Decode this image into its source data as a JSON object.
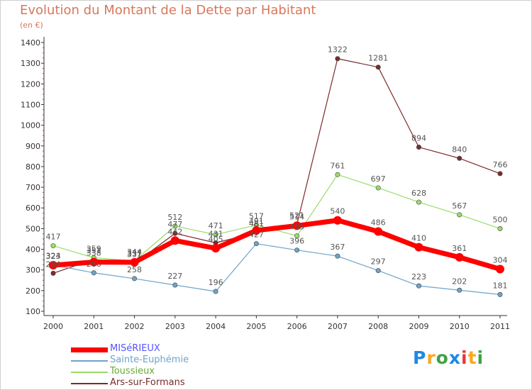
{
  "chart": {
    "title": "Evolution du Montant de la Dette par Habitant",
    "subtitle": "(en €)"
  },
  "chart_data": {
    "type": "line",
    "title": "Evolution du Montant de la Dette par Habitant",
    "subtitle": "(en €)",
    "x": [
      "2000",
      "2001",
      "2002",
      "2003",
      "2004",
      "2005",
      "2006",
      "2007",
      "2008",
      "2009",
      "2010",
      "2011"
    ],
    "ylim": [
      100,
      1400
    ],
    "yticks": [
      100,
      200,
      300,
      400,
      500,
      600,
      700,
      800,
      900,
      1000,
      1100,
      1200,
      1300,
      1400
    ],
    "grid": false,
    "legend_position": "bottom-left",
    "series": [
      {
        "name": "MISéRIEUX",
        "color": "#ff0000",
        "values": [
          323,
          338,
          337,
          442,
          405,
          491,
          514,
          540,
          486,
          410,
          361,
          304
        ]
      },
      {
        "name": "Sainte-Euphémie",
        "color": "#6fa3c9",
        "values": [
          324,
          286,
          258,
          227,
          196,
          427,
          396,
          367,
          297,
          223,
          202,
          181
        ]
      },
      {
        "name": "Toussieux",
        "color": "#99dd66",
        "values": [
          417,
          359,
          344,
          512,
          471,
          517,
          465,
          761,
          697,
          628,
          567,
          500
        ]
      },
      {
        "name": "Ars-sur-Formans",
        "color": "#7a2b2b",
        "values": [
          284,
          351,
          331,
          477,
          431,
          481,
          521,
          1322,
          1281,
          894,
          840,
          766
        ]
      }
    ]
  },
  "logo": {
    "letters": [
      "P",
      "r",
      "o",
      "x",
      "i",
      "t",
      "i"
    ],
    "colors": [
      "#1e88e5",
      "#f9a825",
      "#43a047",
      "#1e88e5",
      "#e53935",
      "#f9a825",
      "#43a047"
    ]
  }
}
